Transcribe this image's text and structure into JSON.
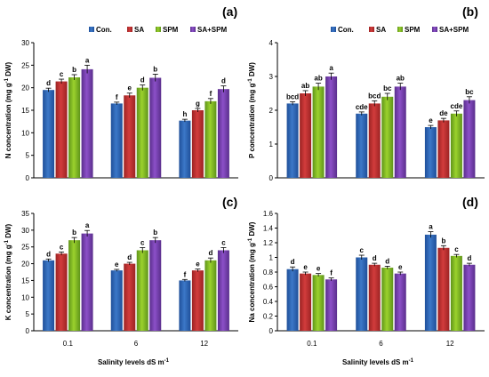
{
  "colors": {
    "series": [
      "#3c78c8",
      "#d23c3c",
      "#9bd22d",
      "#8c50c8"
    ],
    "series_dark": [
      "#1f4f99",
      "#9c2323",
      "#5f941a",
      "#5a2e8c"
    ]
  },
  "shared_x": {
    "categories": [
      "0.1",
      "6",
      "12"
    ],
    "title_main": "Salinity levels dS m",
    "title_sup": "-1"
  },
  "legend": [
    "Con.",
    "SA",
    "SPM",
    "SA+SPM"
  ],
  "chart_data": [
    {
      "type": "bar",
      "panel_label": "(a)",
      "ylabel_main": "N concentration (mg g",
      "ylabel_sup": "-1",
      "ylabel_tail": " DW)",
      "ylim": [
        0,
        30
      ],
      "yticks": [
        "0",
        "5",
        "10",
        "15",
        "20",
        "25",
        "30"
      ],
      "categories": [
        "0.1",
        "6",
        "12"
      ],
      "series": [
        {
          "name": "Con.",
          "values": [
            19.5,
            16.5,
            12.7
          ],
          "errors": [
            0.4,
            0.3,
            0.3
          ],
          "letters": [
            "d",
            "f",
            "h"
          ]
        },
        {
          "name": "SA",
          "values": [
            21.4,
            18.3,
            15.0
          ],
          "errors": [
            0.5,
            0.5,
            0.4
          ],
          "letters": [
            "c",
            "e",
            "g"
          ]
        },
        {
          "name": "SPM",
          "values": [
            22.3,
            20.0,
            17.0
          ],
          "errors": [
            0.6,
            0.6,
            0.6
          ],
          "letters": [
            "b",
            "d",
            "f"
          ]
        },
        {
          "name": "SA+SPM",
          "values": [
            24.1,
            22.2,
            19.7
          ],
          "errors": [
            0.9,
            0.8,
            0.7
          ],
          "letters": [
            "a",
            "b",
            "d"
          ]
        }
      ]
    },
    {
      "type": "bar",
      "panel_label": "(b)",
      "ylabel_main": "P concentration (mg g",
      "ylabel_sup": "-1",
      "ylabel_tail": " DW)",
      "ylim": [
        0,
        4
      ],
      "yticks": [
        "0",
        "1",
        "2",
        "3",
        "4"
      ],
      "categories": [
        "0.1",
        "6",
        "12"
      ],
      "series": [
        {
          "name": "Con.",
          "values": [
            2.2,
            1.9,
            1.5
          ],
          "errors": [
            0.05,
            0.05,
            0.05
          ],
          "letters": [
            "bcd",
            "cde",
            "e"
          ]
        },
        {
          "name": "SA",
          "values": [
            2.5,
            2.2,
            1.7
          ],
          "errors": [
            0.08,
            0.08,
            0.06
          ],
          "letters": [
            "ab",
            "bcd",
            "de"
          ]
        },
        {
          "name": "SPM",
          "values": [
            2.7,
            2.4,
            1.9
          ],
          "errors": [
            0.1,
            0.1,
            0.08
          ],
          "letters": [
            "ab",
            "bc",
            "cde"
          ]
        },
        {
          "name": "SA+SPM",
          "values": [
            3.0,
            2.7,
            2.3
          ],
          "errors": [
            0.1,
            0.1,
            0.1
          ],
          "letters": [
            "a",
            "ab",
            "bc"
          ]
        }
      ]
    },
    {
      "type": "bar",
      "panel_label": "(c)",
      "ylabel_main": "K concentration (mg g",
      "ylabel_sup": "-1",
      "ylabel_tail": " DW)",
      "ylim": [
        0,
        35
      ],
      "yticks": [
        "0",
        "5",
        "10",
        "15",
        "20",
        "25",
        "30",
        "35"
      ],
      "categories": [
        "0.1",
        "6",
        "12"
      ],
      "series": [
        {
          "name": "Con.",
          "values": [
            21.0,
            18.0,
            15.0
          ],
          "errors": [
            0.4,
            0.3,
            0.3
          ],
          "letters": [
            "d",
            "e",
            "f"
          ]
        },
        {
          "name": "SA",
          "values": [
            23.0,
            20.0,
            18.0
          ],
          "errors": [
            0.5,
            0.4,
            0.4
          ],
          "letters": [
            "c",
            "d",
            "e"
          ]
        },
        {
          "name": "SPM",
          "values": [
            27.0,
            24.0,
            21.0
          ],
          "errors": [
            0.8,
            0.8,
            0.7
          ],
          "letters": [
            "b",
            "c",
            "d"
          ]
        },
        {
          "name": "SA+SPM",
          "values": [
            29.0,
            27.0,
            24.0
          ],
          "errors": [
            0.9,
            0.8,
            0.8
          ],
          "letters": [
            "a",
            "b",
            "c"
          ]
        }
      ]
    },
    {
      "type": "bar",
      "panel_label": "(d)",
      "ylabel_main": "Na concentration (mg g",
      "ylabel_sup": "-1",
      "ylabel_tail": " DW)",
      "ylim": [
        0,
        1.6
      ],
      "yticks": [
        "0",
        "0.2",
        "0.4",
        "0.6",
        "0.8",
        "1",
        "1.2",
        "1.4",
        "1.6"
      ],
      "categories": [
        "0.1",
        "6",
        "12"
      ],
      "series": [
        {
          "name": "Con.",
          "values": [
            0.84,
            1.0,
            1.31
          ],
          "errors": [
            0.03,
            0.03,
            0.04
          ],
          "letters": [
            "d",
            "c",
            "a"
          ]
        },
        {
          "name": "SA",
          "values": [
            0.78,
            0.9,
            1.13
          ],
          "errors": [
            0.02,
            0.02,
            0.03
          ],
          "letters": [
            "e",
            "d",
            "b"
          ]
        },
        {
          "name": "SPM",
          "values": [
            0.76,
            0.86,
            1.02
          ],
          "errors": [
            0.02,
            0.02,
            0.02
          ],
          "letters": [
            "e",
            "d",
            "c"
          ]
        },
        {
          "name": "SA+SPM",
          "values": [
            0.7,
            0.78,
            0.9
          ],
          "errors": [
            0.02,
            0.02,
            0.02
          ],
          "letters": [
            "f",
            "e",
            "d"
          ]
        }
      ]
    }
  ]
}
